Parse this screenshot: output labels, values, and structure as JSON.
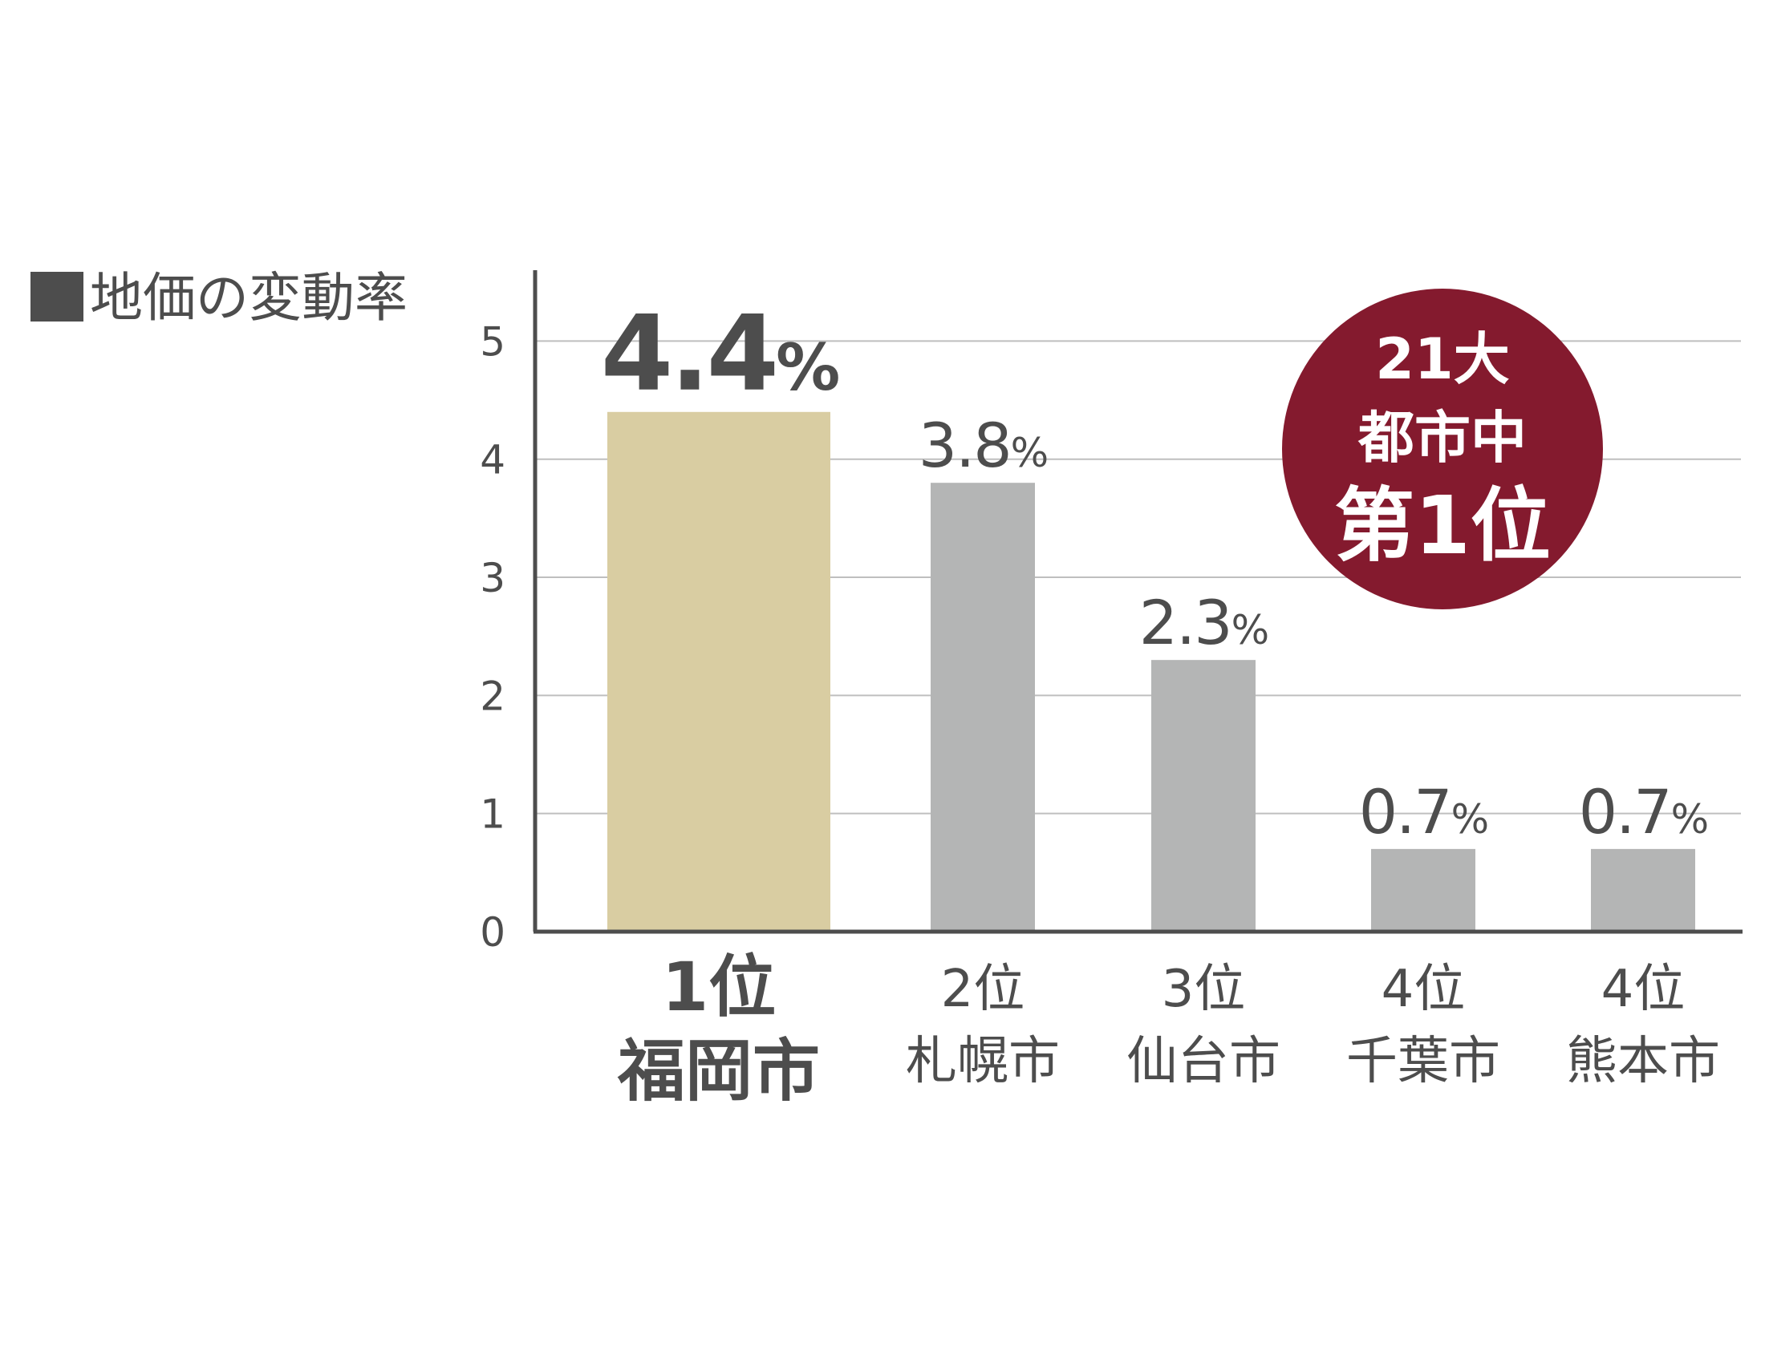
{
  "chart_data": {
    "type": "bar",
    "legend_title": "地価の変動率",
    "categories": [
      {
        "rank": "1位",
        "city": "福岡市"
      },
      {
        "rank": "2位",
        "city": "札幌市"
      },
      {
        "rank": "3位",
        "city": "仙台市"
      },
      {
        "rank": "4位",
        "city": "千葉市"
      },
      {
        "rank": "4位",
        "city": "熊本市"
      }
    ],
    "values": [
      4.4,
      3.8,
      2.3,
      0.7,
      0.7
    ],
    "value_labels": [
      "4.4",
      "3.8",
      "2.3",
      "0.7",
      "0.7"
    ],
    "unit": "%",
    "ylim": [
      0,
      5.6
    ],
    "yticks": [
      0,
      1,
      2,
      3,
      4,
      5
    ],
    "grid": true,
    "highlight_index": 0,
    "colors": {
      "highlight_bar": "#d9cda2",
      "bar": "#b4b5b5",
      "text": "#4d4d4d",
      "axis": "#4d4d4d",
      "grid": "#bfbfbf",
      "badge": "#841a2e"
    },
    "badge": {
      "line1": "21大",
      "line2": "都市中",
      "line3": "第1位"
    }
  }
}
